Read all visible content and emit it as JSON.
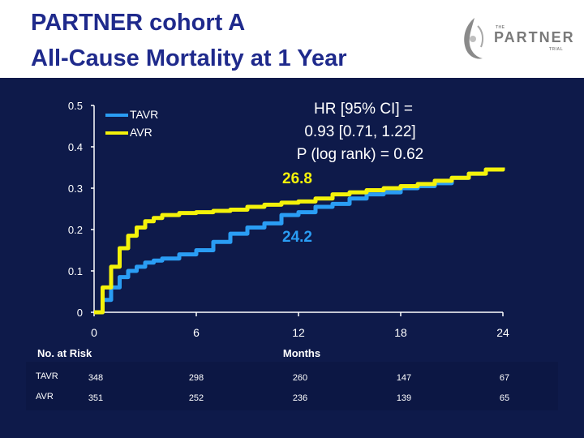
{
  "title": {
    "line1": "PARTNER cohort A",
    "line2": "All-Cause Mortality at 1 Year"
  },
  "logo": {
    "the": "THE",
    "name": "PARTNER",
    "trial": "TRIAL"
  },
  "annotations": {
    "hr_line1": "HR [95% CI] =",
    "hr_line2": "0.93 [0.71, 1.22]",
    "p_value": "P (log rank) = 0.62",
    "avr_final": "26.8",
    "tavr_final": "24.2"
  },
  "risk_table": {
    "header": "No. at Risk",
    "rows": [
      {
        "label": "TAVR",
        "values": [
          "348",
          "298",
          "260",
          "147",
          "67"
        ]
      },
      {
        "label": "AVR",
        "values": [
          "351",
          "252",
          "236",
          "139",
          "65"
        ]
      }
    ]
  },
  "colors": {
    "tavr": "#2a9df4",
    "avr": "#f4f20a",
    "title": "#1f2a8c",
    "background": "#0e1a4a"
  },
  "chart_data": {
    "type": "line",
    "title": "All-Cause Mortality at 1 Year",
    "xlabel": "Months",
    "ylabel": "",
    "xlim": [
      0,
      24
    ],
    "ylim": [
      0,
      0.5
    ],
    "xticks": [
      "0",
      "6",
      "12",
      "18",
      "24"
    ],
    "yticks": [
      "0",
      "0.1",
      "0.2",
      "0.3",
      "0.4",
      "0.5"
    ],
    "legend": {
      "position": "top-left",
      "entries": [
        "TAVR",
        "AVR"
      ]
    },
    "series": [
      {
        "name": "TAVR",
        "x": [
          0,
          0.5,
          1,
          1.5,
          2,
          2.5,
          3,
          3.5,
          4,
          5,
          6,
          7,
          8,
          9,
          10,
          11,
          12,
          13,
          14,
          15,
          16,
          17,
          18,
          19,
          20,
          21,
          22,
          23,
          24
        ],
        "y": [
          0,
          0.03,
          0.06,
          0.085,
          0.1,
          0.11,
          0.12,
          0.125,
          0.13,
          0.14,
          0.15,
          0.17,
          0.19,
          0.205,
          0.215,
          0.235,
          0.242,
          0.255,
          0.262,
          0.275,
          0.285,
          0.29,
          0.3,
          0.305,
          0.312,
          0.325,
          0.335,
          0.345,
          0.35
        ]
      },
      {
        "name": "AVR",
        "x": [
          0,
          0.5,
          1,
          1.5,
          2,
          2.5,
          3,
          3.5,
          4,
          5,
          6,
          7,
          8,
          9,
          10,
          11,
          12,
          13,
          14,
          15,
          16,
          17,
          18,
          19,
          20,
          21,
          22,
          23,
          24
        ],
        "y": [
          0,
          0.06,
          0.11,
          0.155,
          0.185,
          0.205,
          0.22,
          0.228,
          0.235,
          0.24,
          0.242,
          0.245,
          0.248,
          0.255,
          0.26,
          0.265,
          0.268,
          0.275,
          0.285,
          0.29,
          0.295,
          0.3,
          0.305,
          0.31,
          0.318,
          0.325,
          0.335,
          0.345,
          0.35
        ]
      }
    ],
    "risk_header": "No. at Risk"
  }
}
